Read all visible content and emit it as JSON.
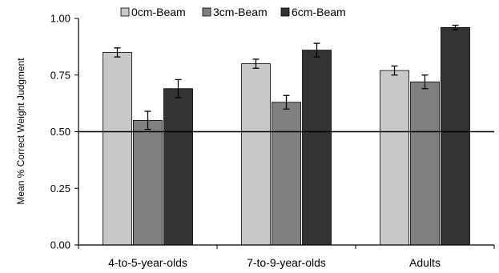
{
  "chart_data": {
    "type": "bar",
    "ylabel": "Mean % Correct Weight Judgment",
    "ylim": [
      0,
      1
    ],
    "y_ticks": [
      "0.00",
      "0.25",
      "0.50",
      "0.75",
      "1.00"
    ],
    "reference_line": 0.5,
    "categories": [
      "4-to-5-year-olds",
      "7-to-9-year-olds",
      "Adults"
    ],
    "legend_position": "top",
    "series": [
      {
        "name": "0cm-Beam",
        "color": "#c8c8c8",
        "values": [
          0.85,
          0.8,
          0.77
        ],
        "errors": [
          0.02,
          0.02,
          0.02
        ]
      },
      {
        "name": "3cm-Beam",
        "color": "#808080",
        "values": [
          0.55,
          0.63,
          0.72
        ],
        "errors": [
          0.04,
          0.03,
          0.03
        ]
      },
      {
        "name": "6cm-Beam",
        "color": "#333333",
        "values": [
          0.69,
          0.86,
          0.96
        ],
        "errors": [
          0.04,
          0.03,
          0.01
        ]
      }
    ]
  }
}
